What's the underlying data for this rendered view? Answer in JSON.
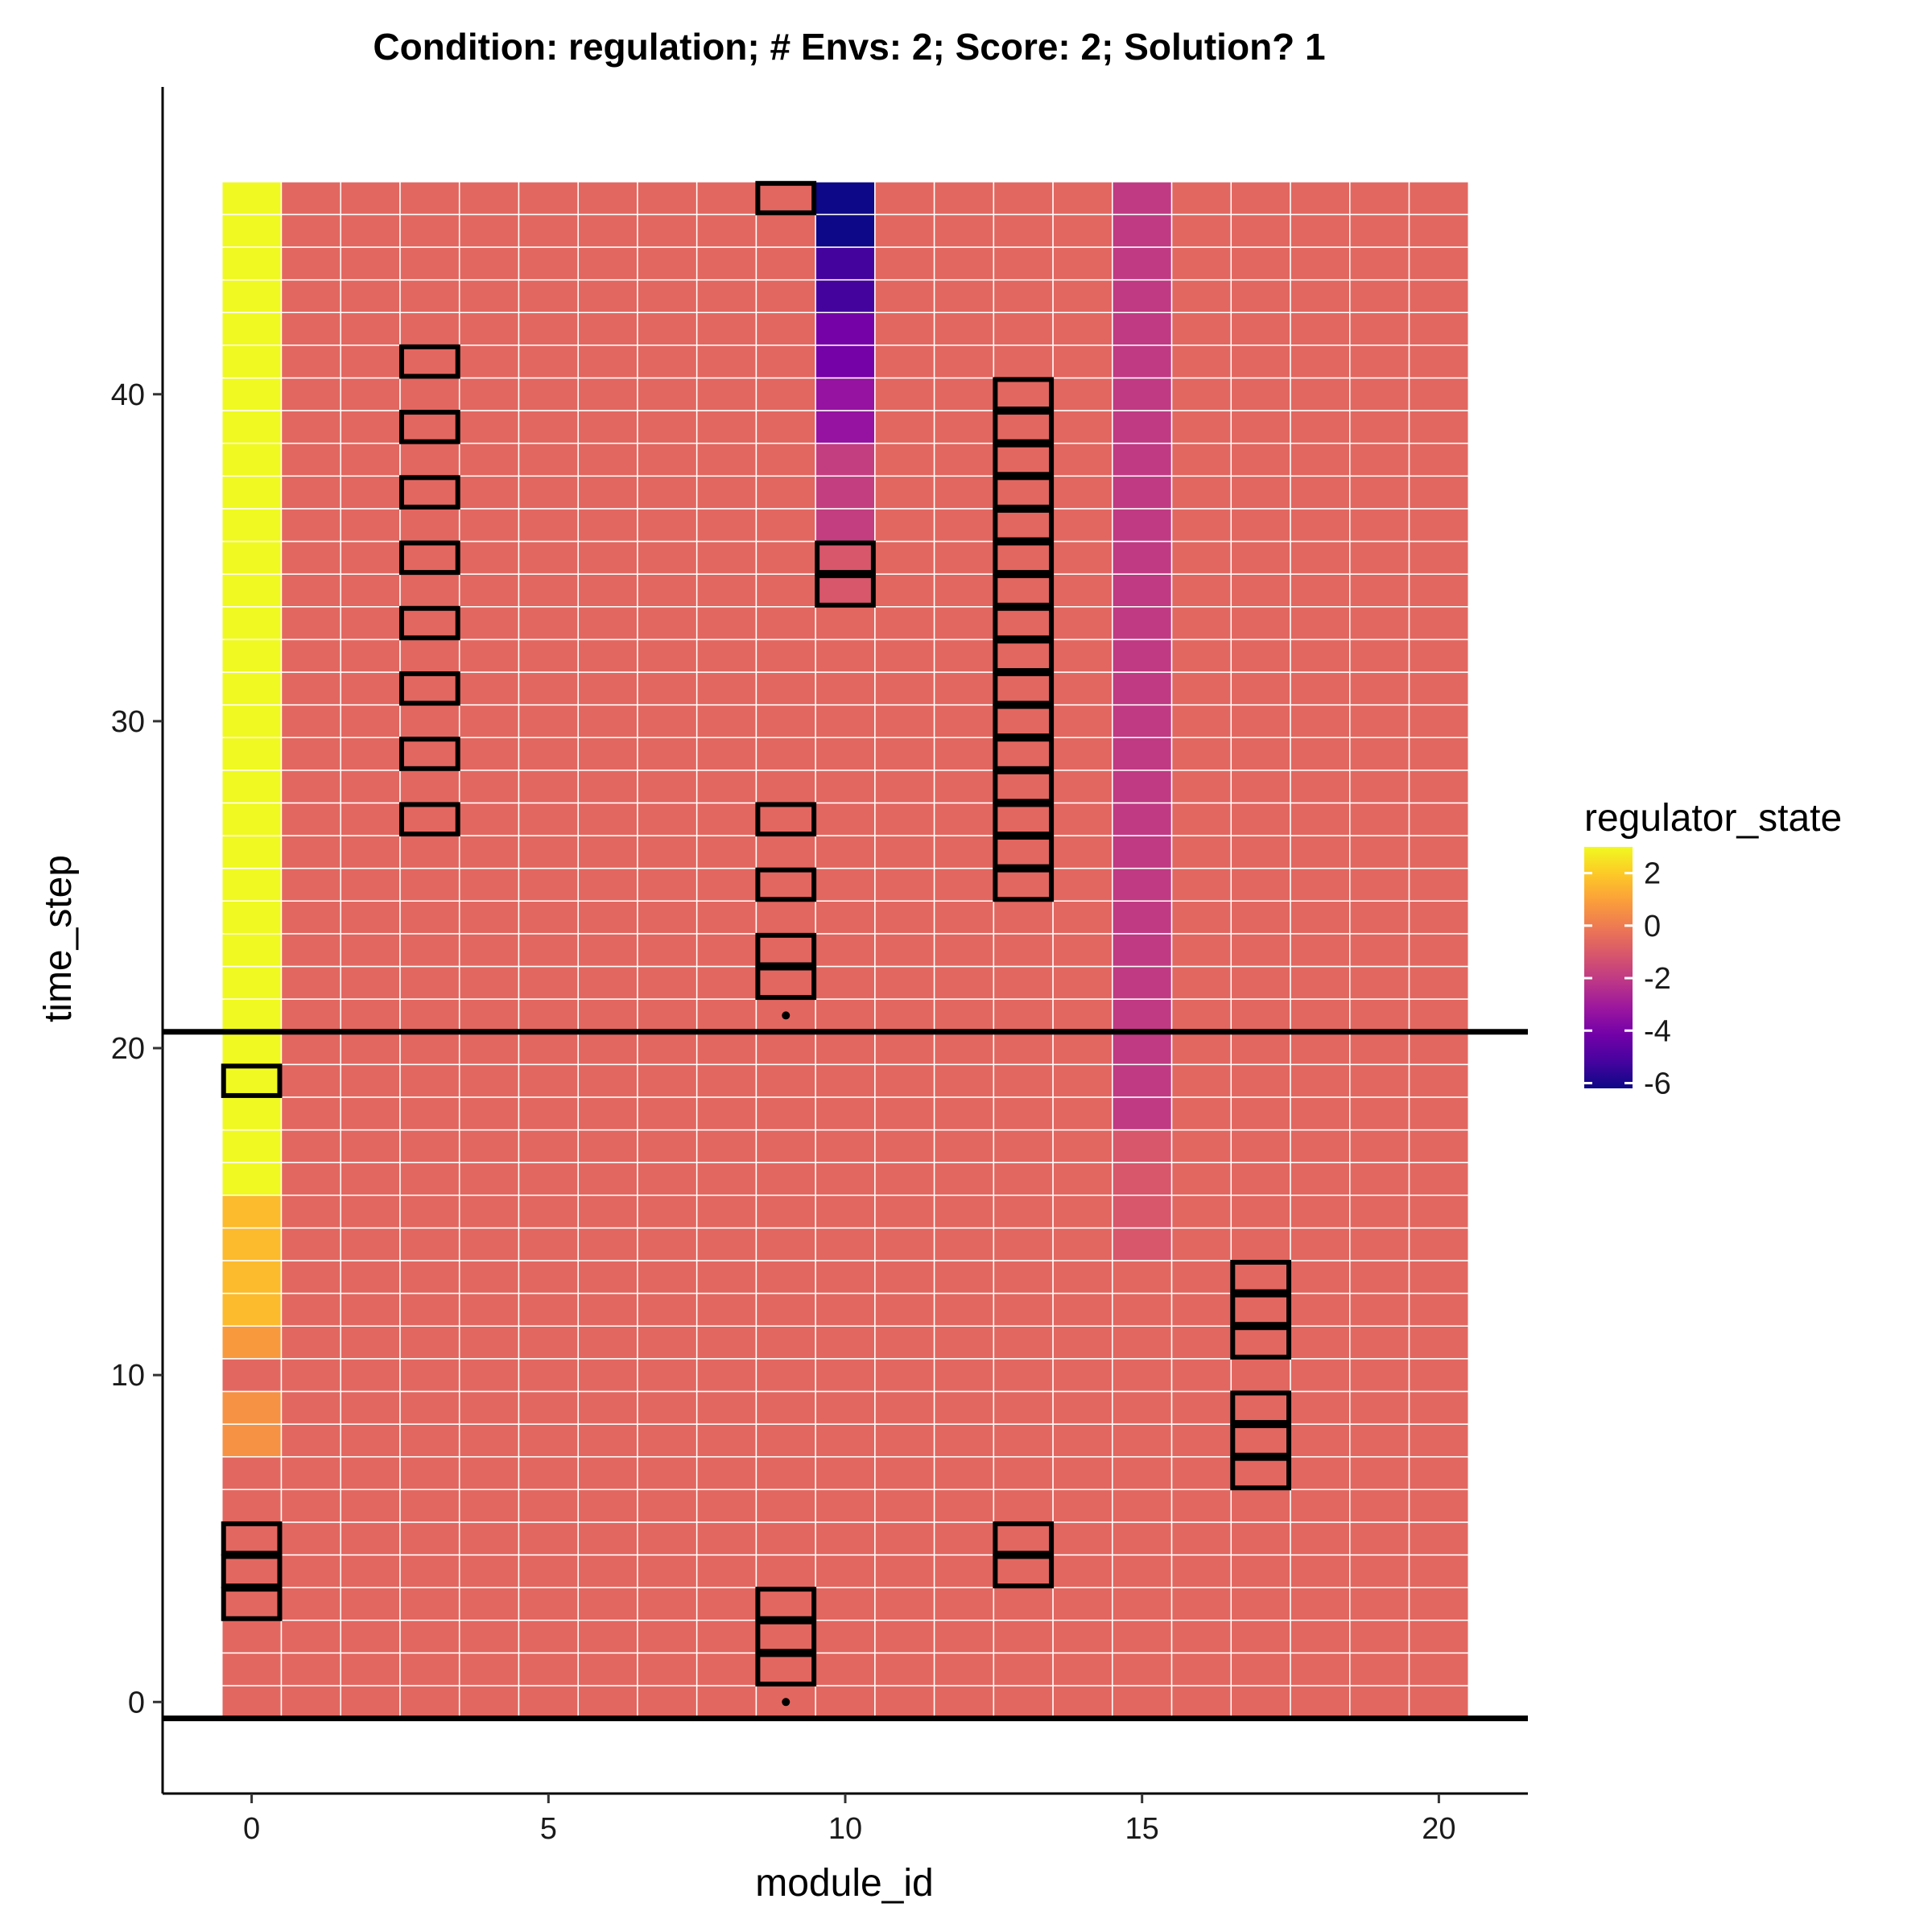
{
  "chart_data": {
    "type": "heatmap",
    "title": "Condition: regulation; # Envs: 2; Score: 2; Solution? 1",
    "xlabel": "module_id",
    "ylabel": "time_step",
    "xlim": [
      -1.5,
      21.5
    ],
    "ylim": [
      -2.8,
      49.4
    ],
    "x_ticks": [
      0,
      5,
      10,
      15,
      20
    ],
    "y_ticks": [
      0,
      10,
      20,
      30,
      40
    ],
    "n_modules": 21,
    "n_time_steps": 47,
    "default_value": -0.6,
    "column_values": [
      {
        "module": 0,
        "segments": [
          {
            "from": 0,
            "to": 7,
            "value": -0.6
          },
          {
            "from": 8,
            "to": 9,
            "value": 0.6
          },
          {
            "from": 10,
            "to": 10,
            "value": -0.6
          },
          {
            "from": 11,
            "to": 11,
            "value": 0.8
          },
          {
            "from": 12,
            "to": 15,
            "value": 1.6
          },
          {
            "from": 16,
            "to": 46,
            "value": 3.0
          }
        ]
      },
      {
        "module": 10,
        "segments": [
          {
            "from": 0,
            "to": 33,
            "value": -0.6
          },
          {
            "from": 34,
            "to": 35,
            "value": -1.1
          },
          {
            "from": 36,
            "to": 38,
            "value": -1.9
          },
          {
            "from": 39,
            "to": 40,
            "value": -3.3
          },
          {
            "from": 41,
            "to": 42,
            "value": -4.1
          },
          {
            "from": 43,
            "to": 44,
            "value": -5.2
          },
          {
            "from": 45,
            "to": 46,
            "value": -6.2
          }
        ]
      },
      {
        "module": 15,
        "segments": [
          {
            "from": 0,
            "to": 13,
            "value": -0.6
          },
          {
            "from": 14,
            "to": 17,
            "value": -1.1
          },
          {
            "from": 18,
            "to": 46,
            "value": -2.0
          }
        ]
      }
    ],
    "highlighted_cells": [
      {
        "module": 0,
        "steps": [
          3,
          4,
          5,
          19
        ]
      },
      {
        "module": 3,
        "steps": [
          27,
          29,
          31,
          33,
          35,
          37,
          39,
          41
        ]
      },
      {
        "module": 9,
        "steps": [
          1,
          2,
          3,
          22,
          23,
          25,
          27,
          46
        ]
      },
      {
        "module": 10,
        "steps": [
          34,
          35
        ]
      },
      {
        "module": 13,
        "steps": [
          4,
          5,
          25,
          26,
          27,
          28,
          29,
          30,
          31,
          32,
          33,
          34,
          35,
          36,
          37,
          38,
          39,
          40
        ]
      },
      {
        "module": 17,
        "steps": [
          7,
          8,
          9,
          11,
          12,
          13
        ]
      }
    ],
    "dot_markers": [
      {
        "module": 9,
        "step": 0
      },
      {
        "module": 9,
        "step": 21
      }
    ],
    "hlines": [
      -0.5,
      20.5
    ],
    "legend": {
      "title": "regulator_state",
      "ticks": [
        2,
        0,
        -2,
        -4,
        -6
      ],
      "tick_labels": [
        "2",
        "0",
        "-2",
        "-4",
        "-6"
      ],
      "range": [
        -6.2,
        3.0
      ],
      "placement": "right"
    },
    "colors": {
      "colorscale": [
        "#0d0887",
        "#46039f",
        "#7201a8",
        "#9c179e",
        "#bd3786",
        "#d8576b",
        "#ed7953",
        "#fb9f3a",
        "#fdca26",
        "#f0f921"
      ],
      "grid_line": "#ffffff",
      "highlight": "#000000",
      "axis": "#000000"
    }
  }
}
